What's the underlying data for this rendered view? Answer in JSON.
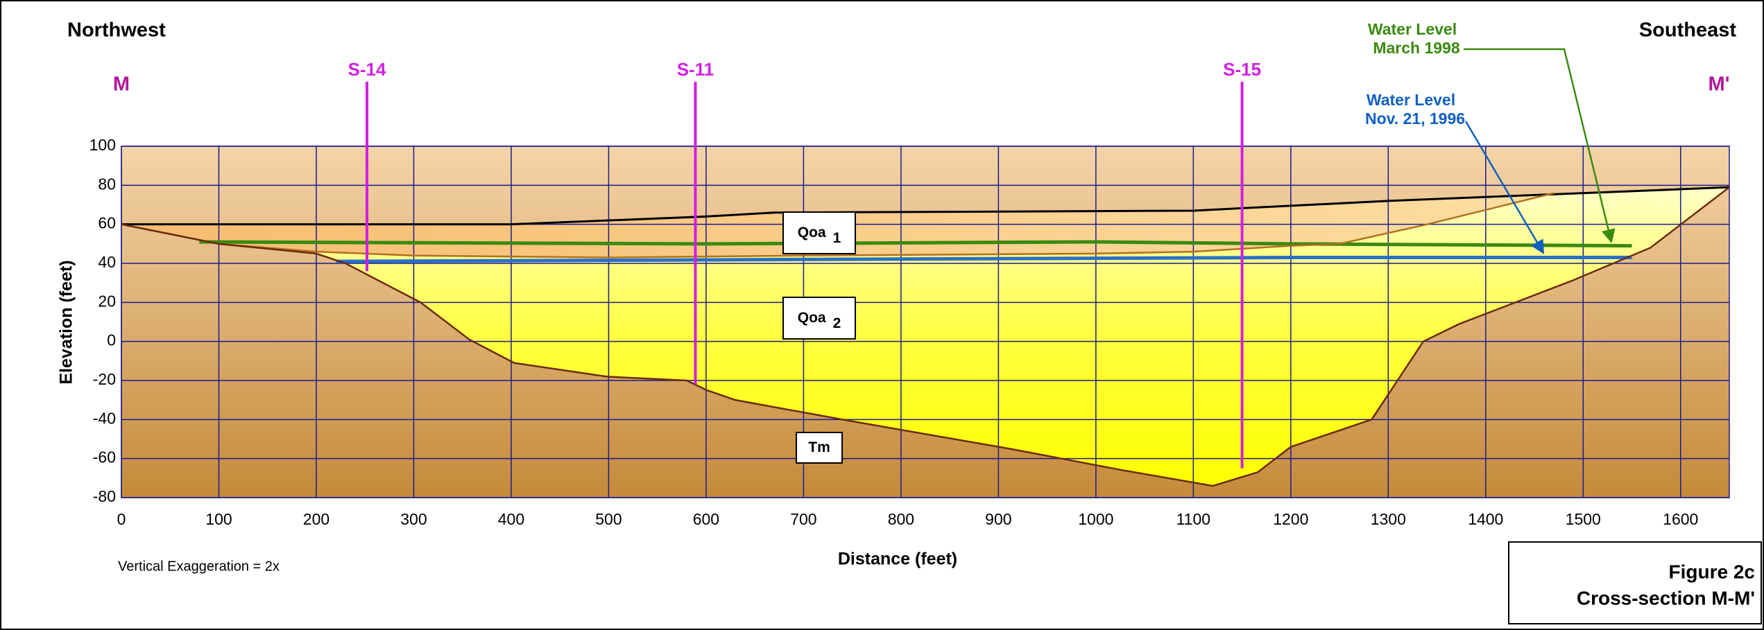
{
  "chart_data": {
    "type": "cross-section",
    "direction_left": "Northwest",
    "direction_right": "Southeast",
    "section_start": "M",
    "section_end": "M'",
    "x_label": "Distance (feet)",
    "y_label": "Elevation (feet)",
    "note": "Vertical Exaggeration = 2x",
    "figure_number": "Figure 2c",
    "figure_title": "Cross-section M-M'",
    "xlim": [
      0,
      1650
    ],
    "ylim": [
      -80,
      100
    ],
    "xticks": [
      0,
      100,
      200,
      300,
      400,
      500,
      600,
      700,
      800,
      900,
      1000,
      1100,
      1200,
      1300,
      1400,
      1500,
      1600
    ],
    "yticks": [
      -80,
      -60,
      -40,
      -20,
      0,
      20,
      40,
      60,
      80,
      100
    ],
    "grid": true,
    "grid_color": "#1a1a8c",
    "surfaces": [
      {
        "color": "#000000",
        "x": [
          0,
          400,
          600,
          670,
          1100,
          1300,
          1500,
          1650
        ],
        "values": [
          60,
          60,
          64,
          66,
          67,
          72,
          76,
          79
        ]
      },
      {
        "color": "#b07020",
        "x": [
          0,
          100,
          200,
          300,
          500,
          700,
          1000,
          1100,
          1200,
          1250,
          1340,
          1470
        ],
        "values": [
          60,
          50,
          46,
          44,
          43,
          44,
          45,
          46,
          49,
          50,
          60,
          76
        ]
      },
      {
        "color": "#6b2a10",
        "x": [
          0,
          100,
          200,
          230,
          307,
          357,
          403,
          498,
          580,
          601,
          630,
          751,
          912,
          1028,
          1120,
          1166,
          1200,
          1283,
          1336,
          1373,
          1488,
          1569,
          1650
        ],
        "values": [
          60,
          50,
          45,
          40,
          20,
          1,
          -11,
          -18,
          -20,
          -25,
          -30,
          -41,
          -55,
          -66,
          -74,
          -67,
          -54,
          -40,
          0,
          9,
          31,
          48,
          79
        ]
      }
    ],
    "water_levels": [
      {
        "label_lines": [
          "Water Level",
          "March 1998"
        ],
        "color": "#3a8a10",
        "x": [
          80,
          600,
          1000,
          1200,
          1550
        ],
        "values": [
          51,
          50,
          51,
          50,
          49
        ]
      },
      {
        "label_lines": [
          "Water Level",
          "Nov. 21, 1996"
        ],
        "color": "#2a70c8",
        "x": [
          220,
          700,
          1200,
          1550
        ],
        "values": [
          41,
          42,
          43,
          43
        ]
      }
    ],
    "wells": [
      {
        "name": "S-14",
        "x": 252,
        "bottom": 36
      },
      {
        "name": "S-11",
        "x": 589,
        "bottom": -22
      },
      {
        "name": "S-15",
        "x": 1150,
        "bottom": -65
      }
    ],
    "well_color": "#d020e0",
    "units": [
      {
        "label": "Qoa",
        "subscript": "1"
      },
      {
        "label": "Qoa",
        "subscript": "2"
      },
      {
        "label": "Tm"
      }
    ]
  }
}
